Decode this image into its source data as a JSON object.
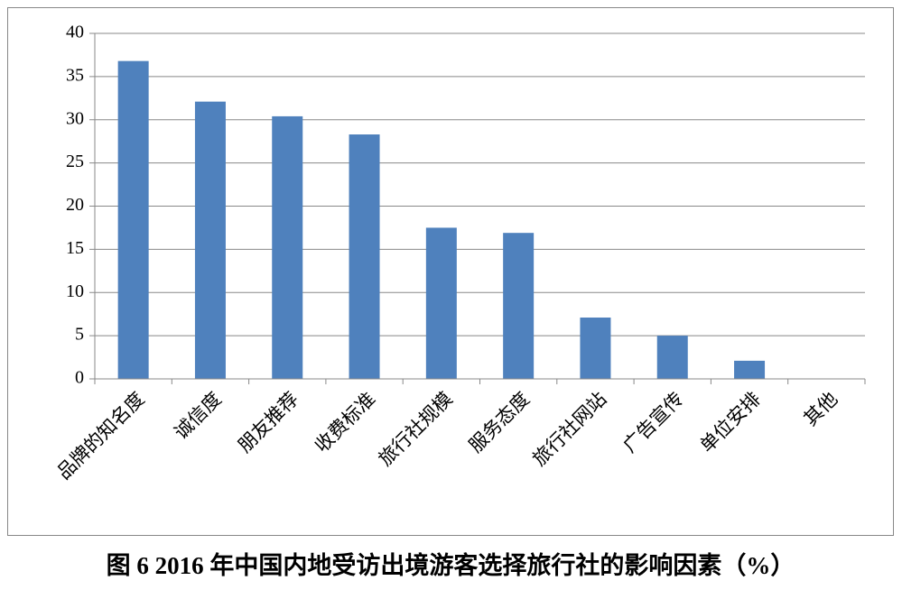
{
  "chart_data": {
    "type": "bar",
    "caption": "图 6 2016 年中国内地受访出境游客选择旅行社的影响因素（%）",
    "categories": [
      "品牌的知名度",
      "诚信度",
      "朋友推荐",
      "收费标准",
      "旅行社规模",
      "服务态度",
      "旅行社网站",
      "广告宣传",
      "单位安排",
      "其他"
    ],
    "values": [
      36.8,
      32.1,
      30.4,
      28.3,
      17.5,
      16.9,
      7.1,
      5.0,
      2.1,
      0
    ],
    "color": "#4f81bd",
    "ylim": [
      0,
      40
    ],
    "yticks": [
      0,
      5,
      10,
      15,
      20,
      25,
      30,
      35,
      40
    ],
    "grid": true
  }
}
